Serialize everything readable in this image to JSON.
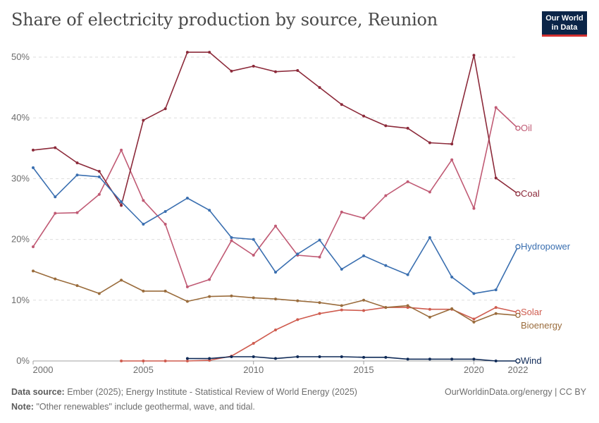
{
  "title": "Share of electricity production by source, Reunion",
  "logo": {
    "line1": "Our World",
    "line2": "in Data"
  },
  "footer": {
    "source_label": "Data source:",
    "source_text": "Ember (2025); Energy Institute - Statistical Review of World Energy (2025)",
    "credit": "OurWorldinData.org/energy | CC BY",
    "note_label": "Note:",
    "note_text": "\"Other renewables\" include geothermal, wave, and tidal."
  },
  "chart_data": {
    "type": "line",
    "xlabel": "",
    "ylabel": "",
    "xlim": [
      2000,
      2022
    ],
    "ylim": [
      0,
      50
    ],
    "x_ticks": [
      2000,
      2005,
      2010,
      2015,
      2020,
      2022
    ],
    "y_ticks": [
      0,
      10,
      20,
      30,
      40,
      50
    ],
    "y_tick_format": "%",
    "grid": true,
    "legend": "right-end-labels",
    "series": [
      {
        "name": "Oil",
        "color": "#c05a74",
        "x": [
          2000,
          2001,
          2002,
          2003,
          2004,
          2005,
          2006,
          2007,
          2008,
          2009,
          2010,
          2011,
          2012,
          2013,
          2014,
          2015,
          2016,
          2017,
          2018,
          2019,
          2020,
          2021,
          2022
        ],
        "y": [
          18.8,
          24.3,
          24.4,
          27.4,
          34.7,
          26.4,
          22.5,
          12.2,
          13.4,
          19.8,
          17.4,
          22.2,
          17.4,
          17.1,
          24.5,
          23.5,
          27.2,
          29.5,
          27.8,
          33.1,
          25.1,
          41.7,
          38.3
        ]
      },
      {
        "name": "Coal",
        "color": "#8c2a3a",
        "x": [
          2000,
          2001,
          2002,
          2003,
          2004,
          2005,
          2006,
          2007,
          2008,
          2009,
          2010,
          2011,
          2012,
          2013,
          2014,
          2015,
          2016,
          2017,
          2018,
          2019,
          2020,
          2021,
          2022
        ],
        "y": [
          34.7,
          35.1,
          32.6,
          31.2,
          25.6,
          39.6,
          41.5,
          50.8,
          50.8,
          47.7,
          48.5,
          47.6,
          47.8,
          45.0,
          42.2,
          40.3,
          38.7,
          38.3,
          35.9,
          35.7,
          50.3,
          30.1,
          27.5
        ]
      },
      {
        "name": "Hydropower",
        "color": "#3a6fb0",
        "x": [
          2000,
          2001,
          2002,
          2003,
          2004,
          2005,
          2006,
          2007,
          2008,
          2009,
          2010,
          2011,
          2012,
          2013,
          2014,
          2015,
          2016,
          2017,
          2018,
          2019,
          2020,
          2021,
          2022
        ],
        "y": [
          31.8,
          27.0,
          30.6,
          30.3,
          26.2,
          22.5,
          24.6,
          26.8,
          24.8,
          20.3,
          20.0,
          14.6,
          17.6,
          19.9,
          15.1,
          17.3,
          15.7,
          14.2,
          20.3,
          13.8,
          11.1,
          11.7,
          18.8
        ]
      },
      {
        "name": "Solar",
        "color": "#cf5c4f",
        "x": [
          2004,
          2005,
          2006,
          2007,
          2008,
          2009,
          2010,
          2011,
          2012,
          2013,
          2014,
          2015,
          2016,
          2017,
          2018,
          2019,
          2020,
          2021,
          2022
        ],
        "y": [
          0.0,
          0.0,
          0.0,
          0.0,
          0.1,
          0.8,
          2.9,
          5.1,
          6.8,
          7.8,
          8.4,
          8.3,
          8.8,
          8.8,
          8.5,
          8.5,
          6.9,
          8.8,
          8.0
        ]
      },
      {
        "name": "Bioenergy",
        "color": "#9a6c3c",
        "x": [
          2000,
          2001,
          2002,
          2003,
          2004,
          2005,
          2006,
          2007,
          2008,
          2009,
          2010,
          2011,
          2012,
          2013,
          2014,
          2015,
          2016,
          2017,
          2018,
          2019,
          2020,
          2021,
          2022
        ],
        "y": [
          14.8,
          13.5,
          12.4,
          11.1,
          13.3,
          11.5,
          11.5,
          9.8,
          10.6,
          10.7,
          10.4,
          10.2,
          9.9,
          9.6,
          9.1,
          10.0,
          8.8,
          9.1,
          7.2,
          8.6,
          6.4,
          7.8,
          7.5
        ]
      },
      {
        "name": "Wind",
        "color": "#0f2a57",
        "x": [
          2007,
          2008,
          2009,
          2010,
          2011,
          2012,
          2013,
          2014,
          2015,
          2016,
          2017,
          2018,
          2019,
          2020,
          2021,
          2022
        ],
        "y": [
          0.4,
          0.4,
          0.7,
          0.7,
          0.4,
          0.7,
          0.7,
          0.7,
          0.6,
          0.6,
          0.3,
          0.3,
          0.3,
          0.3,
          0.0,
          0.0
        ]
      }
    ]
  }
}
